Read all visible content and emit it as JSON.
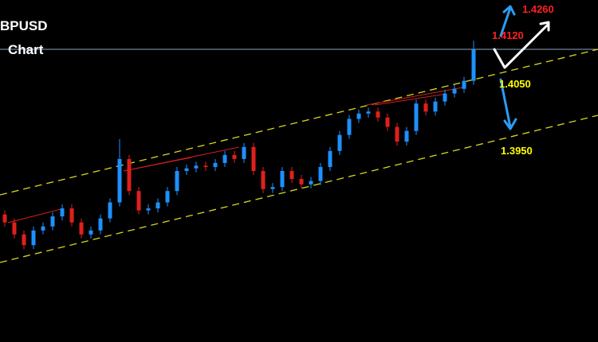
{
  "chart_data": {
    "type": "candlestick",
    "title": "BPUSD",
    "subtitle": "Chart",
    "up_color": "#1e90ff",
    "down_color": "#e0201c",
    "ylim": [
      1.3664,
      1.4176
    ],
    "open": [
      1.3855,
      1.3843,
      1.3825,
      1.3809,
      1.3831,
      1.3837,
      1.3852,
      1.3864,
      1.3843,
      1.3825,
      1.3831,
      1.3849,
      1.3873,
      1.3938,
      1.389,
      1.3861,
      1.3864,
      1.3873,
      1.389,
      1.392,
      1.3924,
      1.3928,
      1.3926,
      1.3932,
      1.3944,
      1.3938,
      1.3956,
      1.392,
      1.3893,
      1.3896,
      1.392,
      1.3908,
      1.39,
      1.3905,
      1.3926,
      1.395,
      1.3974,
      1.3998,
      1.4006,
      1.4009,
      1.4,
      1.3986,
      1.3964,
      1.398,
      1.4021,
      1.4009,
      1.4024,
      1.4036,
      1.4043,
      1.4055
    ],
    "high": [
      1.3861,
      1.3849,
      1.3831,
      1.3837,
      1.3843,
      1.3858,
      1.387,
      1.387,
      1.3849,
      1.3837,
      1.3855,
      1.3879,
      1.3968,
      1.3944,
      1.3896,
      1.387,
      1.3879,
      1.3896,
      1.3926,
      1.393,
      1.3934,
      1.3934,
      1.3938,
      1.395,
      1.395,
      1.3962,
      1.3962,
      1.3926,
      1.3902,
      1.3926,
      1.3926,
      1.3914,
      1.3911,
      1.3932,
      1.3956,
      1.398,
      1.4004,
      1.4012,
      1.4015,
      1.4015,
      1.4006,
      1.3992,
      1.3986,
      1.4027,
      1.4027,
      1.403,
      1.4042,
      1.4049,
      1.4061,
      1.4115
    ],
    "low": [
      1.3837,
      1.3819,
      1.3803,
      1.3803,
      1.3825,
      1.3831,
      1.3846,
      1.3837,
      1.3819,
      1.3819,
      1.3825,
      1.3843,
      1.3867,
      1.3884,
      1.3855,
      1.3855,
      1.3858,
      1.3867,
      1.3884,
      1.3914,
      1.3918,
      1.392,
      1.392,
      1.3926,
      1.3932,
      1.3932,
      1.3914,
      1.3887,
      1.3887,
      1.389,
      1.3902,
      1.3894,
      1.3894,
      1.3899,
      1.392,
      1.3944,
      1.3968,
      1.3992,
      1.4,
      1.3994,
      1.398,
      1.3958,
      1.3958,
      1.3974,
      1.4003,
      1.4003,
      1.4018,
      1.403,
      1.4037,
      1.4049
    ],
    "close": [
      1.3843,
      1.3825,
      1.3809,
      1.3831,
      1.3837,
      1.3852,
      1.3864,
      1.3843,
      1.3825,
      1.3831,
      1.3849,
      1.3873,
      1.3938,
      1.389,
      1.3861,
      1.3864,
      1.3873,
      1.389,
      1.392,
      1.3924,
      1.3928,
      1.3926,
      1.3932,
      1.3944,
      1.3938,
      1.3956,
      1.392,
      1.3893,
      1.3896,
      1.392,
      1.3908,
      1.39,
      1.3905,
      1.3926,
      1.395,
      1.3974,
      1.3998,
      1.4006,
      1.4009,
      1.4,
      1.3986,
      1.3964,
      1.398,
      1.4021,
      1.4009,
      1.4024,
      1.4036,
      1.4043,
      1.4055,
      1.4102
    ],
    "annotations": [
      {
        "text": "1.4260",
        "color": "#ff2020"
      },
      {
        "text": "1.4120",
        "color": "#ff2020"
      },
      {
        "text": "1.4050",
        "color": "#ffff00"
      },
      {
        "text": "1.3950",
        "color": "#ffff00"
      }
    ]
  }
}
